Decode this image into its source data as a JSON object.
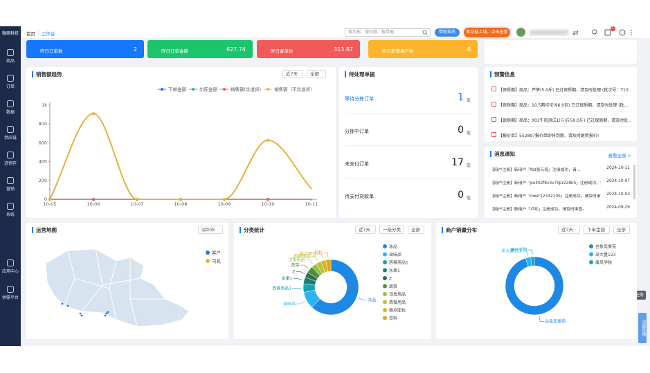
{
  "header": {
    "logo": "微商科技",
    "breadcrumb": [
      "首页",
      "工作台"
    ],
    "search_placeholder": "搜功能、搜问题、搜单据",
    "help_button": "帮助指南",
    "promo_button": "新功能上线，点击查看",
    "notification_count": "1"
  },
  "sidebar": {
    "items": [
      "商品",
      "订单",
      "数据",
      "供应链",
      "进销存",
      "营销",
      "系统"
    ],
    "bottom_items": [
      "应用中心",
      "供需平台"
    ]
  },
  "stats": [
    {
      "label": "昨日订单数",
      "value": 2,
      "color": "#1677ff"
    },
    {
      "label": "昨日订单金额",
      "value": 627.74,
      "color": "#1cc46b"
    },
    {
      "label": "昨日客单价",
      "value": 313.87,
      "color": "#f25a5a"
    },
    {
      "label": "昨日新增用户数",
      "value": 0,
      "color": "#fbb42c"
    }
  ],
  "pending": {
    "title": "待处理单据",
    "rows": [
      {
        "label": "等待分拣订单",
        "value": 1,
        "unit": "笔"
      },
      {
        "label": "分拣中订单",
        "value": 0,
        "unit": "笔"
      },
      {
        "label": "未支付订单",
        "value": 17,
        "unit": "笔"
      },
      {
        "label": "待支付货款单",
        "value": 0,
        "unit": "笔"
      }
    ]
  },
  "alerts": {
    "title": "预警信息",
    "items": [
      "【保质期】商品：芦笋(5.0斤) 已过保质期，请及时处理 (批次号：T10...",
      "【保质期】商品：10.5两坨坨(96.0包) 已过保质期，请及时处理 (批...",
      "【保质期】商品：001牛肉测试1(斤/斤50.0斤) 已过保质期，请及时处...",
      "【报价单】552897报价单即将到期，请及时更新报价!"
    ]
  },
  "messages": {
    "title": "消息通知",
    "more": "查看全部 >",
    "items": [
      {
        "text": "【用户注册】新用户「fsd张元海」注册成功，请...",
        "date": "2024-10-11"
      },
      {
        "text": "【用户注册】新用户「po402f8v3v70pr238kh」注册成功，请...",
        "date": "2024-10-07"
      },
      {
        "text": "【用户注册】新用户「ower12332100」注册成功，请及时审...",
        "date": "2024-10-03"
      },
      {
        "text": "【用户注册】新用户「卢欢」注册成功，请及时审查。",
        "date": "2024-09-29"
      }
    ]
  },
  "map": {
    "title": "运营地图",
    "dropdown": "深圳市",
    "legend": [
      {
        "name": "客户",
        "color": "#1677ff"
      },
      {
        "name": "司机",
        "color": "#f0b429"
      }
    ]
  },
  "side_tabs": [
    "任务",
    "功能反馈"
  ],
  "chart_data": [
    {
      "type": "line",
      "title": "销售额趋势",
      "filters": [
        "近7天",
        "全部"
      ],
      "categories": [
        "10-05",
        "10-06",
        "10-07",
        "10-08",
        "10-09",
        "10-10",
        "10-11"
      ],
      "series": [
        {
          "name": "下单金额",
          "color": "#1677ff",
          "values": [
            0,
            0,
            0,
            0,
            0,
            0,
            0
          ]
        },
        {
          "name": "出库金额",
          "color": "#2bbf6a",
          "values": [
            0,
            0,
            0,
            0,
            0,
            0,
            0
          ]
        },
        {
          "name": "销售额(含退货)",
          "color": "#f25a5a",
          "values": [
            0,
            0,
            0,
            0,
            0,
            0,
            0
          ]
        },
        {
          "name": "销售额（不含退货）",
          "color": "#e6b23a",
          "values": [
            0,
            910,
            0,
            0,
            0,
            627.74,
            110
          ]
        }
      ],
      "ylim": [
        0,
        1000
      ],
      "yticks": [
        0,
        200,
        400,
        600,
        800,
        {
          "value": 1000,
          "label": "1k"
        }
      ],
      "smooth": true
    },
    {
      "type": "pie",
      "title": "分类统计",
      "filters": [
        "近7天",
        "一级分类",
        "全部"
      ],
      "categories": [
        "冻品",
        "调味品",
        "西餐用品1",
        "水果1",
        "Z",
        "蔬菜",
        "顶角用品",
        "西餐用品",
        "糕点面包",
        "饮料"
      ],
      "values": [
        62,
        10,
        5,
        4,
        3,
        4,
        3,
        3,
        3,
        3
      ],
      "colors": [
        "#1e88e5",
        "#29b6f6",
        "#17a2b8",
        "#1b7f72",
        "#2e6b4f",
        "#4f8f3a",
        "#8bc34a",
        "#b8c234",
        "#d4b72a",
        "#e6a21e"
      ]
    },
    {
      "type": "pie",
      "title": "商户销量分布",
      "filters": [
        "近7天",
        "下单金额",
        "全部"
      ],
      "categories": [
        "白鱼卖果苑",
        "采大量123",
        "康风学院"
      ],
      "values": [
        95,
        3,
        2
      ],
      "colors": [
        "#1e88e5",
        "#29b6f6",
        "#17a2b8"
      ]
    }
  ]
}
